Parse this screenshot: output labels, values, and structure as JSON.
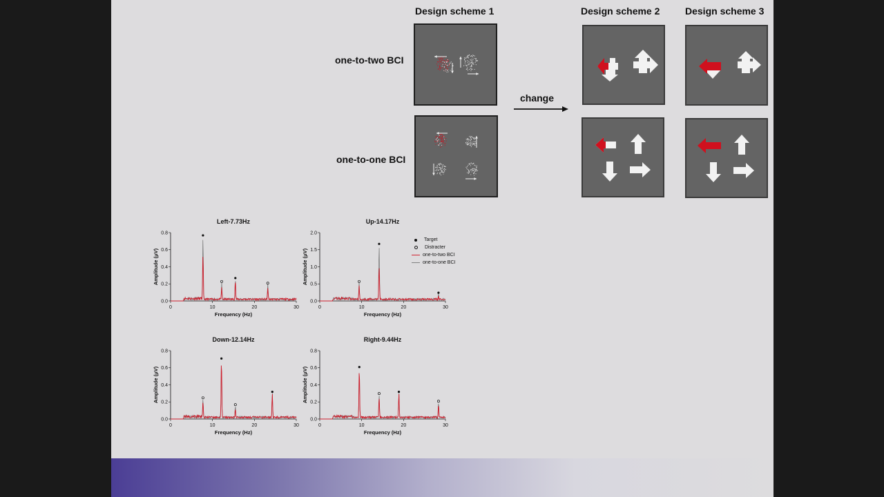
{
  "header": {
    "scheme1": "Design scheme 1",
    "scheme2": "Design scheme 2",
    "scheme3": "Design scheme 3"
  },
  "labels": {
    "one_to_two": "one-to-two BCI",
    "one_to_one": "one-to-one BCI",
    "change": "change"
  },
  "colors": {
    "panel_bg": "#646464",
    "target_arrow": "#d0101e",
    "arrow": "#f2f2f2",
    "trace_one_to_two": "#d0202e",
    "trace_one_to_one": "#808080"
  },
  "legend": {
    "target": "Target",
    "distracter": "Distracter",
    "one_to_two": "one-to-two BCI",
    "one_to_one": "one-to-one BCI"
  },
  "chart_data": [
    {
      "type": "line",
      "title": "Left-7.73Hz",
      "xlabel": "Frequency (Hz)",
      "ylabel": "Amplitude (μV)",
      "xlim": [
        0,
        30
      ],
      "ylim": [
        0,
        0.8
      ],
      "xticks": [
        0,
        10,
        20,
        30
      ],
      "yticks": [
        "0.0",
        "0.2",
        "0.4",
        "0.6",
        "0.8"
      ],
      "series": [
        {
          "name": "one-to-two BCI",
          "peaks": [
            [
              7.73,
              0.55
            ],
            [
              12.2,
              0.16
            ],
            [
              15.46,
              0.24
            ],
            [
              23.2,
              0.15
            ]
          ]
        },
        {
          "name": "one-to-one BCI",
          "peaks": [
            [
              7.73,
              0.76
            ],
            [
              12.2,
              0.22
            ],
            [
              15.46,
              0.26
            ],
            [
              23.2,
              0.2
            ]
          ]
        }
      ],
      "markers": {
        "target": [
          [
            7.73,
            0.76
          ],
          [
            15.46,
            0.26
          ]
        ],
        "distracter": [
          [
            12.2,
            0.22
          ],
          [
            23.2,
            0.2
          ]
        ]
      }
    },
    {
      "type": "line",
      "title": "Up-14.17Hz",
      "xlabel": "Frequency (Hz)",
      "ylabel": "Amplitude (μV)",
      "xlim": [
        0,
        30
      ],
      "ylim": [
        0,
        2.0
      ],
      "xticks": [
        0,
        10,
        20,
        30
      ],
      "yticks": [
        "0.0",
        "0.5",
        "1.0",
        "1.5",
        "2.0"
      ],
      "series": [
        {
          "name": "one-to-two BCI",
          "peaks": [
            [
              9.4,
              0.45
            ],
            [
              14.17,
              1.02
            ],
            [
              28.34,
              0.15
            ]
          ]
        },
        {
          "name": "one-to-one BCI",
          "peaks": [
            [
              9.4,
              0.55
            ],
            [
              14.17,
              1.65
            ],
            [
              28.34,
              0.22
            ]
          ]
        }
      ],
      "markers": {
        "target": [
          [
            14.17,
            1.65
          ],
          [
            28.34,
            0.22
          ]
        ],
        "distracter": [
          [
            9.4,
            0.55
          ]
        ]
      }
    },
    {
      "type": "line",
      "title": "Down-12.14Hz",
      "xlabel": "Frequency (Hz)",
      "ylabel": "Amplitude (μV)",
      "xlim": [
        0,
        30
      ],
      "ylim": [
        0,
        0.8
      ],
      "xticks": [
        0,
        10,
        20,
        30
      ],
      "yticks": [
        "0.0",
        "0.2",
        "0.4",
        "0.6",
        "0.8"
      ],
      "series": [
        {
          "name": "one-to-two BCI",
          "peaks": [
            [
              7.73,
              0.2
            ],
            [
              12.14,
              0.7
            ],
            [
              15.46,
              0.12
            ],
            [
              24.28,
              0.3
            ]
          ]
        },
        {
          "name": "one-to-one BCI",
          "peaks": [
            [
              7.73,
              0.24
            ],
            [
              12.14,
              0.7
            ],
            [
              15.46,
              0.16
            ],
            [
              24.28,
              0.31
            ]
          ]
        }
      ],
      "markers": {
        "target": [
          [
            12.14,
            0.7
          ],
          [
            24.28,
            0.31
          ]
        ],
        "distracter": [
          [
            7.73,
            0.24
          ],
          [
            15.46,
            0.16
          ]
        ]
      }
    },
    {
      "type": "line",
      "title": "Right-9.44Hz",
      "xlabel": "Frequency (Hz)",
      "ylabel": "Amplitude (μV)",
      "xlim": [
        0,
        30
      ],
      "ylim": [
        0,
        0.8
      ],
      "xticks": [
        0,
        10,
        20,
        30
      ],
      "yticks": [
        "0.0",
        "0.2",
        "0.4",
        "0.6",
        "0.8"
      ],
      "series": [
        {
          "name": "one-to-two BCI",
          "peaks": [
            [
              9.44,
              0.6
            ],
            [
              14.17,
              0.25
            ],
            [
              18.88,
              0.3
            ],
            [
              28.34,
              0.17
            ]
          ]
        },
        {
          "name": "one-to-one BCI",
          "peaks": [
            [
              9.44,
              0.6
            ],
            [
              14.17,
              0.29
            ],
            [
              18.88,
              0.31
            ],
            [
              28.34,
              0.2
            ]
          ]
        }
      ],
      "markers": {
        "target": [
          [
            9.44,
            0.6
          ],
          [
            18.88,
            0.31
          ]
        ],
        "distracter": [
          [
            14.17,
            0.29
          ],
          [
            28.34,
            0.2
          ]
        ]
      }
    }
  ]
}
